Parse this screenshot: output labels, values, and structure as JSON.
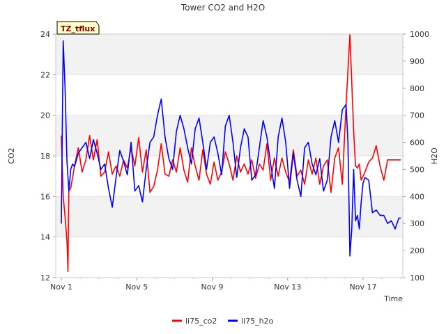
{
  "chart_data": {
    "type": "line",
    "title": "Tower CO2 and H2O",
    "badge": "TZ_tflux",
    "xlabel": "Time",
    "ylabel_left": "CO2",
    "ylabel_right": "H2O",
    "x_range_days": [
      0,
      18
    ],
    "ylim_left": [
      12,
      24
    ],
    "ylim_right": [
      100,
      1000
    ],
    "x_ticks": [
      {
        "day": 0,
        "label": "Nov 1"
      },
      {
        "day": 4,
        "label": "Nov 5"
      },
      {
        "day": 8,
        "label": "Nov 9"
      },
      {
        "day": 12,
        "label": "Nov 13"
      },
      {
        "day": 16,
        "label": "Nov 17"
      }
    ],
    "y_ticks_left": [
      12,
      14,
      16,
      18,
      20,
      22,
      24
    ],
    "y_ticks_right": [
      100,
      200,
      300,
      400,
      500,
      600,
      700,
      800,
      900,
      1000
    ],
    "bands_left": [
      [
        14,
        16
      ],
      [
        18,
        20
      ],
      [
        22,
        24
      ]
    ],
    "legend_position": "bottom",
    "series": [
      {
        "name": "li75_co2",
        "axis": "left",
        "color": "#ff0000",
        "x": [
          0.0,
          0.1,
          0.2,
          0.3,
          0.35,
          0.4,
          0.5,
          0.7,
          0.9,
          1.1,
          1.3,
          1.5,
          1.7,
          1.9,
          2.1,
          2.3,
          2.5,
          2.7,
          2.9,
          3.1,
          3.3,
          3.5,
          3.7,
          3.9,
          4.1,
          4.3,
          4.5,
          4.7,
          4.9,
          5.1,
          5.3,
          5.5,
          5.7,
          5.9,
          6.1,
          6.3,
          6.5,
          6.7,
          6.9,
          7.1,
          7.3,
          7.5,
          7.7,
          7.9,
          8.1,
          8.3,
          8.5,
          8.7,
          8.9,
          9.1,
          9.3,
          9.5,
          9.7,
          9.9,
          10.1,
          10.3,
          10.5,
          10.7,
          10.9,
          11.1,
          11.3,
          11.5,
          11.7,
          11.9,
          12.1,
          12.3,
          12.5,
          12.7,
          12.9,
          13.1,
          13.3,
          13.5,
          13.7,
          13.9,
          14.1,
          14.3,
          14.5,
          14.7,
          14.9,
          15.1,
          15.3,
          15.5,
          15.6,
          15.7,
          15.8,
          15.9,
          16.0,
          16.1,
          16.3,
          16.5,
          16.7,
          16.9,
          17.1,
          17.3,
          17.5,
          17.7,
          17.9,
          18.0
        ],
        "values": [
          19.0,
          16.0,
          15.0,
          13.8,
          12.3,
          16.3,
          16.4,
          17.5,
          18.4,
          17.2,
          17.8,
          19.0,
          17.8,
          18.8,
          17.0,
          17.2,
          18.2,
          17.1,
          17.5,
          17.0,
          17.8,
          17.4,
          18.4,
          17.5,
          18.9,
          17.2,
          18.3,
          16.2,
          16.5,
          17.3,
          18.6,
          17.1,
          17.0,
          17.8,
          17.2,
          18.4,
          17.3,
          16.7,
          18.4,
          17.5,
          16.8,
          18.3,
          17.1,
          16.6,
          17.7,
          16.8,
          17.2,
          18.2,
          17.6,
          16.8,
          18.0,
          17.2,
          17.6,
          17.1,
          17.8,
          16.9,
          17.6,
          17.3,
          18.6,
          16.8,
          17.9,
          17.0,
          17.9,
          17.2,
          16.7,
          18.3,
          17.0,
          17.3,
          16.6,
          17.8,
          17.1,
          17.9,
          16.6,
          17.5,
          17.8,
          16.2,
          17.9,
          18.4,
          16.6,
          20.5,
          24.0,
          19.2,
          17.5,
          17.4,
          17.6,
          16.8,
          17.0,
          17.2,
          17.7,
          17.9,
          18.5,
          17.5,
          16.8,
          17.8,
          17.8,
          17.8,
          17.8,
          17.8
        ]
      },
      {
        "name": "li75_h2o",
        "axis": "right",
        "color": "#0000ff",
        "x": [
          0.0,
          0.1,
          0.2,
          0.3,
          0.4,
          0.5,
          0.6,
          0.7,
          0.9,
          1.1,
          1.3,
          1.5,
          1.7,
          1.9,
          2.1,
          2.3,
          2.5,
          2.7,
          2.9,
          3.1,
          3.3,
          3.5,
          3.7,
          3.9,
          4.1,
          4.3,
          4.5,
          4.7,
          4.9,
          5.1,
          5.3,
          5.5,
          5.7,
          5.9,
          6.1,
          6.3,
          6.5,
          6.7,
          6.9,
          7.1,
          7.3,
          7.5,
          7.7,
          7.9,
          8.1,
          8.3,
          8.5,
          8.7,
          8.9,
          9.1,
          9.3,
          9.5,
          9.7,
          9.9,
          10.1,
          10.3,
          10.5,
          10.7,
          10.9,
          11.1,
          11.3,
          11.5,
          11.7,
          11.9,
          12.1,
          12.3,
          12.5,
          12.7,
          12.9,
          13.1,
          13.3,
          13.5,
          13.7,
          13.9,
          14.1,
          14.3,
          14.5,
          14.7,
          14.9,
          15.1,
          15.2,
          15.3,
          15.4,
          15.5,
          15.6,
          15.7,
          15.8,
          15.9,
          16.0,
          16.1,
          16.3,
          16.5,
          16.7,
          16.9,
          17.1,
          17.3,
          17.5,
          17.7,
          17.9,
          18.0
        ],
        "values": [
          300,
          975,
          800,
          530,
          420,
          500,
          520,
          510,
          560,
          580,
          600,
          540,
          610,
          560,
          500,
          520,
          430,
          360,
          470,
          570,
          530,
          480,
          600,
          420,
          440,
          380,
          500,
          600,
          620,
          700,
          760,
          620,
          540,
          500,
          640,
          700,
          650,
          580,
          520,
          650,
          690,
          600,
          500,
          600,
          620,
          560,
          480,
          660,
          700,
          600,
          470,
          580,
          650,
          620,
          460,
          480,
          580,
          680,
          620,
          520,
          430,
          620,
          690,
          600,
          430,
          560,
          460,
          400,
          580,
          600,
          520,
          480,
          540,
          420,
          460,
          620,
          680,
          600,
          720,
          740,
          600,
          180,
          280,
          500,
          310,
          330,
          280,
          380,
          450,
          470,
          460,
          340,
          350,
          330,
          330,
          300,
          310,
          280,
          320,
          320
        ]
      }
    ]
  }
}
